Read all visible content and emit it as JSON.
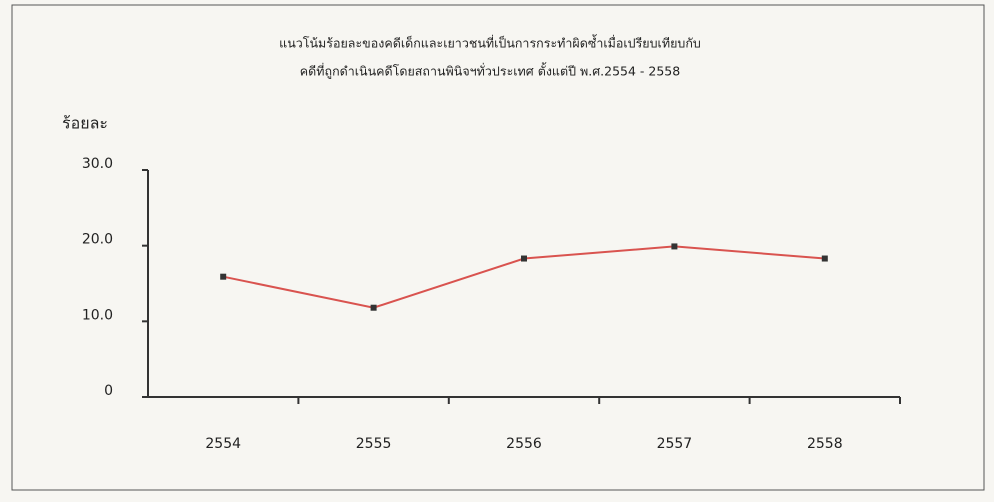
{
  "chart_data": {
    "type": "line",
    "title": [
      "แนวโน้มร้อยละของคดีเด็กและเยาวชนที่เป็นการกระทำผิดซ้ำเมื่อเปรียบเทียบกับ",
      "คดีที่ถูกดำเนินคดีโดยสถานพินิจฯทั่วประเทศ  ตั้งแต่ปี พ.ศ.2554 - 2558"
    ],
    "y_label": "ร้อยละ",
    "categories": [
      "2554",
      "2555",
      "2556",
      "2557",
      "2558"
    ],
    "values": [
      15.9,
      11.8,
      18.3,
      19.9,
      18.3
    ],
    "color": "#d9534f",
    "marker_color": "#333333",
    "ylim": [
      0,
      30
    ],
    "yticks": [
      0,
      {
        "value": 10,
        "label": "10.0"
      },
      {
        "value": 20,
        "label": "20.0"
      },
      {
        "value": 30,
        "label": "30.0"
      }
    ],
    "grid": false
  }
}
